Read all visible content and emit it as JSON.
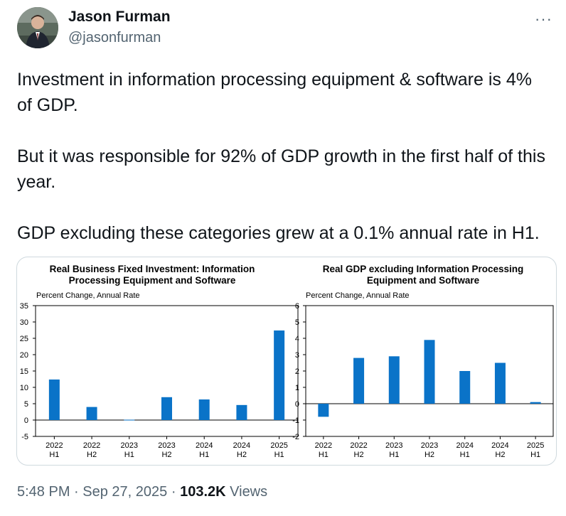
{
  "author": {
    "name": "Jason Furman",
    "handle": "@jasonfurman"
  },
  "more_label": "···",
  "tweet": {
    "paragraphs": [
      "Investment in information processing equipment & software is 4% of GDP.",
      "But it was responsible for 92% of GDP growth in the first half of this year.",
      "GDP excluding these categories grew at a 0.1% annual rate in H1."
    ]
  },
  "footer": {
    "time": "5:48 PM",
    "sep": "·",
    "date": "Sep 27, 2025",
    "views_count": "103.2K",
    "views_label": "Views"
  },
  "colors": {
    "bar": "#0a73c8",
    "text": "#0f1419",
    "muted": "#536471"
  },
  "chart_data": [
    {
      "type": "bar",
      "title": [
        "Real Business Fixed Investment: Information",
        "Processing Equipment and Software"
      ],
      "subtitle": "Percent Change, Annual Rate",
      "categories": [
        [
          "2022",
          "H1"
        ],
        [
          "2022",
          "H2"
        ],
        [
          "2023",
          "H1"
        ],
        [
          "2023",
          "H2"
        ],
        [
          "2024",
          "H1"
        ],
        [
          "2024",
          "H2"
        ],
        [
          "2025",
          "H1"
        ]
      ],
      "values": [
        12.4,
        4.0,
        0.1,
        7.0,
        6.3,
        4.6,
        27.4
      ],
      "ylim": [
        -5,
        35
      ],
      "yticks": [
        -5,
        0,
        5,
        10,
        15,
        20,
        25,
        30,
        35
      ],
      "ytick_labels": [
        "-5",
        "0",
        "5",
        "10",
        "15",
        "20",
        "25",
        "30",
        "35"
      ]
    },
    {
      "type": "bar",
      "title": [
        "Real GDP excluding Information Processing",
        "Equipment and Software"
      ],
      "subtitle": "Percent Change, Annual Rate",
      "categories": [
        [
          "2022",
          "H1"
        ],
        [
          "2022",
          "H2"
        ],
        [
          "2023",
          "H1"
        ],
        [
          "2023",
          "H2"
        ],
        [
          "2024",
          "H1"
        ],
        [
          "2024",
          "H2"
        ],
        [
          "2025",
          "H1"
        ]
      ],
      "values": [
        -0.8,
        2.8,
        2.9,
        3.9,
        2.0,
        2.5,
        0.1
      ],
      "ylim": [
        -2,
        6
      ],
      "yticks": [
        -2,
        -1,
        0,
        1,
        2,
        3,
        4,
        5,
        6
      ],
      "ytick_labels": [
        "-2",
        "-1",
        "0",
        "1",
        "2",
        "3",
        "4",
        "5",
        "6"
      ]
    }
  ]
}
